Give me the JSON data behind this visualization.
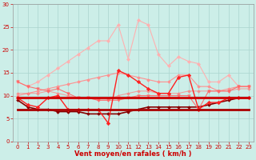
{
  "xlabel": "Vent moyen/en rafales ( km/h )",
  "xlim": [
    -0.5,
    23.5
  ],
  "ylim": [
    0,
    30
  ],
  "yticks": [
    0,
    5,
    10,
    15,
    20,
    25,
    30
  ],
  "xticks": [
    0,
    1,
    2,
    3,
    4,
    5,
    6,
    7,
    8,
    9,
    10,
    11,
    12,
    13,
    14,
    15,
    16,
    17,
    18,
    19,
    20,
    21,
    22,
    23
  ],
  "bg_color": "#cceee8",
  "grid_color": "#aad4ce",
  "lines": [
    {
      "y": [
        13.0,
        12.0,
        13.0,
        14.5,
        16.0,
        17.5,
        19.0,
        20.5,
        22.0,
        22.0,
        25.5,
        18.0,
        26.5,
        25.5,
        19.0,
        16.5,
        18.5,
        17.5,
        17.0,
        13.0,
        13.0,
        14.5,
        12.0,
        12.0
      ],
      "color": "#ffb0b0",
      "linewidth": 0.8,
      "marker": "D",
      "markersize": 2.0,
      "alpha": 1.0,
      "zorder": 2
    },
    {
      "y": [
        10.0,
        10.5,
        11.0,
        11.5,
        12.0,
        12.5,
        13.0,
        13.5,
        14.0,
        14.5,
        15.0,
        14.5,
        14.0,
        13.5,
        13.0,
        13.0,
        14.5,
        14.5,
        12.0,
        12.0,
        11.0,
        11.5,
        12.0,
        12.0
      ],
      "color": "#ff9090",
      "linewidth": 0.8,
      "marker": "D",
      "markersize": 1.8,
      "alpha": 1.0,
      "zorder": 2
    },
    {
      "y": [
        10.5,
        10.5,
        10.5,
        11.0,
        10.5,
        10.0,
        9.5,
        9.5,
        9.0,
        9.0,
        10.0,
        10.5,
        11.0,
        11.0,
        10.5,
        10.5,
        10.5,
        11.0,
        11.0,
        11.0,
        11.0,
        11.0,
        11.5,
        11.5
      ],
      "color": "#ff8080",
      "linewidth": 0.8,
      "marker": "D",
      "markersize": 1.8,
      "alpha": 0.7,
      "zorder": 2
    },
    {
      "y": [
        9.5,
        8.0,
        7.5,
        9.5,
        10.0,
        7.0,
        7.0,
        7.0,
        7.0,
        4.0,
        15.5,
        14.5,
        13.0,
        11.5,
        10.5,
        10.5,
        14.0,
        14.5,
        7.0,
        8.5,
        8.5,
        9.5,
        9.5,
        9.5
      ],
      "color": "#ff2020",
      "linewidth": 1.0,
      "marker": "D",
      "markersize": 2.2,
      "alpha": 1.0,
      "zorder": 4
    },
    {
      "y": [
        9.5,
        9.5,
        9.5,
        9.5,
        9.5,
        9.5,
        9.5,
        9.5,
        9.5,
        9.5,
        9.5,
        9.5,
        9.5,
        9.5,
        9.5,
        9.5,
        9.5,
        9.5,
        9.5,
        9.5,
        9.5,
        9.5,
        9.5,
        9.5
      ],
      "color": "#cc0000",
      "linewidth": 2.0,
      "marker": null,
      "markersize": 0,
      "alpha": 1.0,
      "zorder": 5
    },
    {
      "y": [
        7.0,
        7.0,
        7.0,
        7.0,
        7.0,
        7.0,
        7.0,
        7.0,
        7.0,
        7.0,
        7.0,
        7.0,
        7.0,
        7.0,
        7.0,
        7.0,
        7.0,
        7.0,
        7.0,
        7.0,
        7.0,
        7.0,
        7.0,
        7.0
      ],
      "color": "#aa0000",
      "linewidth": 2.0,
      "marker": null,
      "markersize": 0,
      "alpha": 1.0,
      "zorder": 5
    },
    {
      "y": [
        9.0,
        7.5,
        7.0,
        7.0,
        6.5,
        6.5,
        6.5,
        6.0,
        6.0,
        6.0,
        6.0,
        6.5,
        7.0,
        7.5,
        7.5,
        7.5,
        7.5,
        7.5,
        7.5,
        8.0,
        8.5,
        9.0,
        9.5,
        9.5
      ],
      "color": "#880000",
      "linewidth": 1.2,
      "marker": "D",
      "markersize": 1.8,
      "alpha": 1.0,
      "zorder": 3
    },
    {
      "y": [
        13.0,
        12.0,
        11.5,
        11.0,
        11.5,
        10.5,
        9.5,
        9.5,
        9.0,
        9.0,
        9.0,
        9.5,
        10.0,
        10.0,
        10.0,
        10.0,
        10.0,
        10.0,
        7.0,
        11.0,
        11.0,
        11.0,
        12.0,
        12.0
      ],
      "color": "#ff6666",
      "linewidth": 0.8,
      "marker": "v",
      "markersize": 2.5,
      "alpha": 0.9,
      "zorder": 3
    }
  ]
}
